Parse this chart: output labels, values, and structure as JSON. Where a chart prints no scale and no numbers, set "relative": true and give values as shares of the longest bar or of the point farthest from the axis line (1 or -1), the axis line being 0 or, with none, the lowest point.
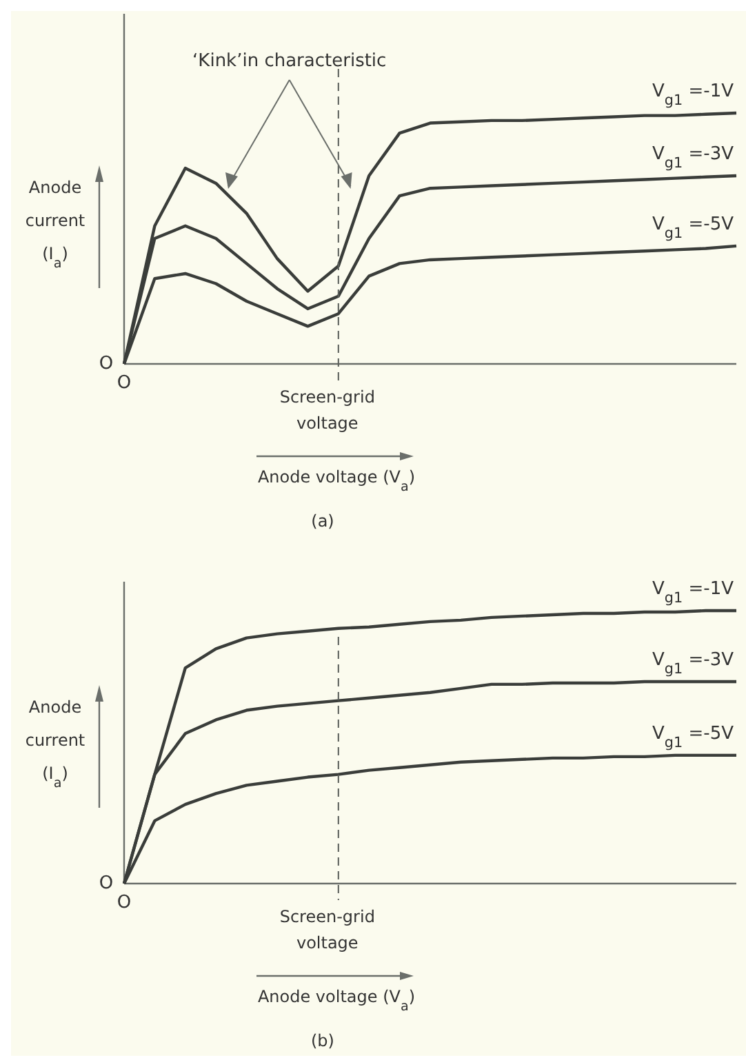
{
  "chart_data": [
    {
      "type": "line",
      "title": "(a)",
      "xlabel": "Anode voltage (V$_{a}$)",
      "ylabel": "Anode current (I$_{a}$)",
      "relative": true,
      "annotations": [
        "O",
        "O",
        "Screen-grid voltage",
        "‘Kink’in characteristic"
      ],
      "categories": [
        null,
        null,
        null,
        null,
        null,
        null,
        null,
        null,
        null,
        null,
        null,
        null,
        null,
        null,
        null,
        null,
        null,
        null,
        null,
        null,
        null
      ],
      "series": [
        {
          "name": "V$_{g1}$ =-1V",
          "color": "#3a3d3a",
          "values": [
            0,
            0.55,
            0.78,
            0.72,
            0.6,
            0.42,
            0.29,
            0.39,
            0.75,
            0.92,
            0.96,
            0.965,
            0.97,
            0.97,
            0.975,
            0.98,
            0.985,
            0.99,
            0.99,
            0.995,
            1
          ]
        },
        {
          "name": "V$_{g1}$ =-3V",
          "color": "#3a3d3a",
          "values": [
            0,
            0.5,
            0.55,
            0.5,
            0.4,
            0.3,
            0.22,
            0.27,
            0.5,
            0.67,
            0.7,
            0.705,
            0.71,
            0.715,
            0.72,
            0.725,
            0.73,
            0.735,
            0.74,
            0.745,
            0.75
          ]
        },
        {
          "name": "V$_{g1}$ =-5V",
          "color": "#3a3d3a",
          "values": [
            0,
            0.34,
            0.36,
            0.32,
            0.25,
            0.2,
            0.15,
            0.2,
            0.35,
            0.4,
            0.415,
            0.42,
            0.425,
            0.43,
            0.435,
            0.44,
            0.445,
            0.45,
            0.455,
            0.46,
            0.47
          ]
        }
      ]
    },
    {
      "type": "line",
      "title": "(b)",
      "xlabel": "Anode voltage (V$_{a}$)",
      "ylabel": "Anode current (I$_{a}$)",
      "relative": true,
      "annotations": [
        "O",
        "O",
        "Screen-grid voltage"
      ],
      "categories": [
        null,
        null,
        null,
        null,
        null,
        null,
        null,
        null,
        null,
        null,
        null,
        null,
        null,
        null,
        null,
        null,
        null,
        null,
        null,
        null,
        null
      ],
      "series": [
        {
          "name": "V$_{g1}$ =-1V",
          "color": "#3a3d3a",
          "values": [
            0,
            0.4,
            0.79,
            0.86,
            0.9,
            0.915,
            0.925,
            0.935,
            0.94,
            0.95,
            0.96,
            0.965,
            0.975,
            0.98,
            0.985,
            0.99,
            0.99,
            0.995,
            0.995,
            1,
            1
          ]
        },
        {
          "name": "V$_{g1}$ =-3V",
          "color": "#3a3d3a",
          "values": [
            0,
            0.4,
            0.55,
            0.6,
            0.635,
            0.65,
            0.66,
            0.67,
            0.68,
            0.69,
            0.7,
            0.715,
            0.73,
            0.73,
            0.735,
            0.735,
            0.735,
            0.74,
            0.74,
            0.74,
            0.74
          ]
        },
        {
          "name": "V$_{g1}$ =-5V",
          "color": "#3a3d3a",
          "values": [
            0,
            0.23,
            0.29,
            0.33,
            0.36,
            0.375,
            0.39,
            0.4,
            0.415,
            0.425,
            0.435,
            0.445,
            0.45,
            0.455,
            0.46,
            0.46,
            0.465,
            0.465,
            0.47,
            0.47,
            0.47
          ]
        }
      ]
    }
  ]
}
